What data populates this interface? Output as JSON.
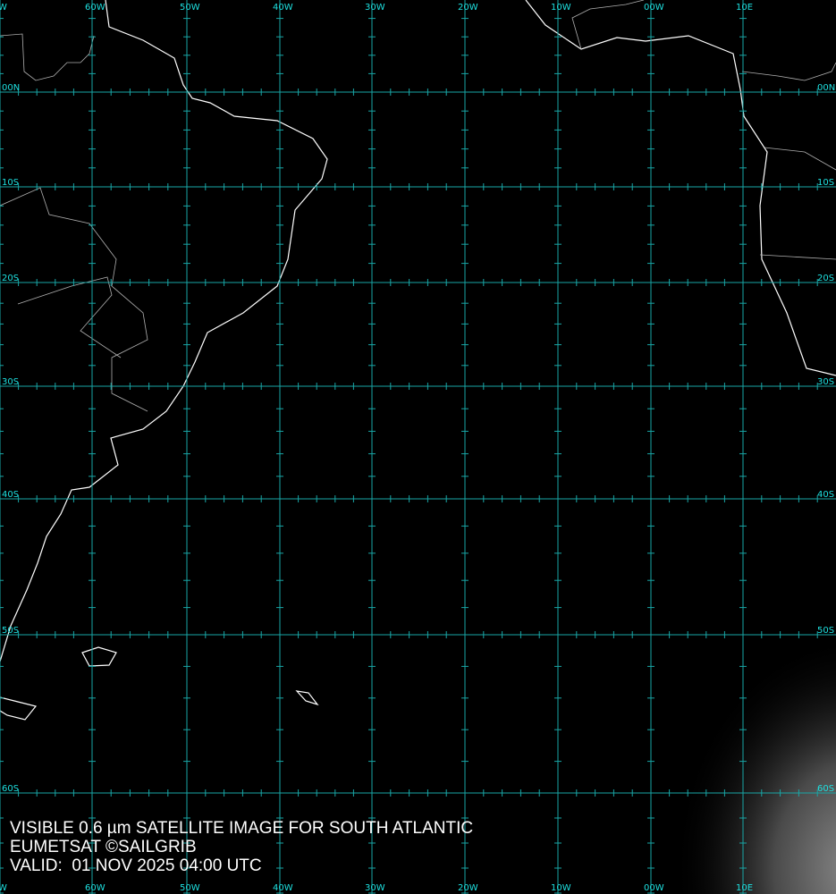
{
  "map": {
    "type": "satellite-image",
    "channel": "visible",
    "colors": {
      "background": "#000000",
      "grid": "#19a6a6",
      "grid_label": "#1ee0e0",
      "coastline": "#ffffff",
      "border": "#b0b0b0"
    },
    "longitude_labels": [
      "W",
      "60W",
      "50W",
      "40W",
      "30W",
      "20W",
      "10W",
      "00W",
      "10E"
    ],
    "latitude_labels": [
      "00N",
      "10S",
      "20S",
      "30S",
      "40S",
      "50S",
      "60S"
    ]
  },
  "caption": {
    "line1": "VISIBLE 0.6 µm SATELLITE IMAGE FOR SOUTH ATLANTIC",
    "line2": "EUMETSAT ©SAILGRIB",
    "line3": "VALID:  01 NOV 2025 04:00 UTC"
  }
}
